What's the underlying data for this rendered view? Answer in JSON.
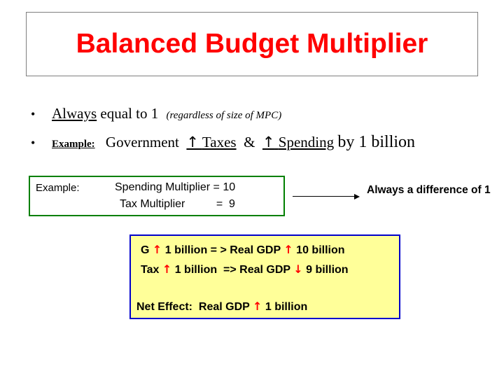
{
  "title": "Balanced Budget Multiplier",
  "bullets": {
    "dot": "•",
    "b1_always": "Always",
    "b1_rest": "equal to 1",
    "b1_note": "(regardless of size of MPC)",
    "b2_label": "Example:",
    "b2_government": "Government",
    "b2_arrow": "↑",
    "b2_taxes": "Taxes",
    "b2_amp": "&",
    "b2_spending": "Spending",
    "b2_tail": "by 1 billion"
  },
  "example_box": {
    "label": "Example:",
    "line1": "Spending Multiplier = 10",
    "line2": "Tax Multiplier          =  9",
    "border_color": "#008000"
  },
  "difference_note": "Always a difference of 1",
  "result_box": {
    "r1_pre": "G",
    "r1_arrow": "↑",
    "r1_mid": "1 billion = > Real GDP",
    "r1_arrow2": "↑",
    "r1_end": "10 billion",
    "r2_pre": "Tax",
    "r2_arrow": "↑",
    "r2_mid": "1 billion  => Real GDP",
    "r2_arrow2": "↓",
    "r2_end": "9 billion",
    "r3_pre": "Net Effect:  Real GDP",
    "r3_arrow": "↑",
    "r3_end": "1 billion",
    "background": "#ffff99",
    "border_color": "#0000cc"
  },
  "colors": {
    "title": "#ff0000",
    "arrow": "#ff0000"
  }
}
